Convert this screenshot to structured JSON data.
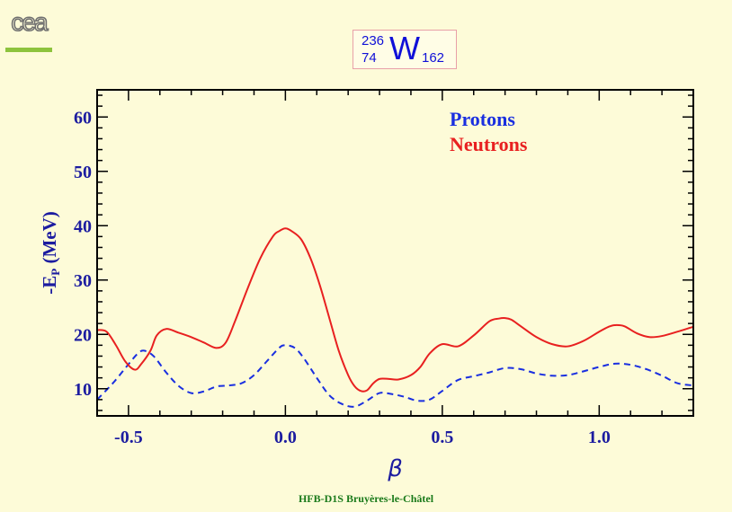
{
  "logo": {
    "text": "cea"
  },
  "nucleus": {
    "mass_number": "236",
    "atomic_number": "74",
    "symbol": "W",
    "neutron_number": "162"
  },
  "footer": {
    "text": "HFB-D1S Bruyères-le-Châtel"
  },
  "chart_data": {
    "type": "line",
    "title": "",
    "xlabel": "β",
    "ylabel_main": "-E",
    "ylabel_sub": "P",
    "ylabel_unit": " (MeV)",
    "xlim": [
      -0.6,
      1.3
    ],
    "ylim": [
      5,
      65
    ],
    "xticks": [
      -0.5,
      0.0,
      0.5,
      1.0
    ],
    "xtick_labels": [
      "-0.5",
      "0.0",
      "0.5",
      "1.0"
    ],
    "yticks": [
      10,
      20,
      30,
      40,
      50,
      60
    ],
    "ytick_labels": [
      "10",
      "20",
      "30",
      "40",
      "50",
      "60"
    ],
    "legend_placement": "top-right",
    "series": [
      {
        "name": "Protons",
        "color": "#1a2fe0",
        "dash": "dashed",
        "x": [
          -0.6,
          -0.55,
          -0.5,
          -0.47,
          -0.45,
          -0.42,
          -0.38,
          -0.34,
          -0.3,
          -0.26,
          -0.22,
          -0.18,
          -0.14,
          -0.1,
          -0.06,
          -0.02,
          0.0,
          0.03,
          0.06,
          0.1,
          0.14,
          0.18,
          0.22,
          0.26,
          0.3,
          0.34,
          0.38,
          0.42,
          0.46,
          0.5,
          0.55,
          0.6,
          0.65,
          0.7,
          0.75,
          0.8,
          0.85,
          0.9,
          0.95,
          1.0,
          1.05,
          1.1,
          1.15,
          1.2,
          1.25,
          1.3
        ],
        "y": [
          8.0,
          11.0,
          14.5,
          16.5,
          17.0,
          16.0,
          13.0,
          10.5,
          9.2,
          9.5,
          10.4,
          10.6,
          11.0,
          12.5,
          15.0,
          17.5,
          18.0,
          17.5,
          15.5,
          12.0,
          8.8,
          7.2,
          6.7,
          7.8,
          9.2,
          9.0,
          8.5,
          7.8,
          8.0,
          9.6,
          11.6,
          12.3,
          13.0,
          13.8,
          13.6,
          12.8,
          12.4,
          12.5,
          13.2,
          14.0,
          14.6,
          14.4,
          13.6,
          12.4,
          11.0,
          10.6
        ]
      },
      {
        "name": "Neutrons",
        "color": "#e82020",
        "dash": "solid",
        "x": [
          -0.6,
          -0.57,
          -0.54,
          -0.51,
          -0.48,
          -0.46,
          -0.43,
          -0.41,
          -0.38,
          -0.34,
          -0.3,
          -0.26,
          -0.22,
          -0.19,
          -0.16,
          -0.12,
          -0.08,
          -0.04,
          -0.02,
          0.0,
          0.02,
          0.05,
          0.08,
          0.11,
          0.14,
          0.17,
          0.2,
          0.22,
          0.24,
          0.26,
          0.28,
          0.3,
          0.33,
          0.36,
          0.4,
          0.43,
          0.46,
          0.5,
          0.55,
          0.6,
          0.65,
          0.68,
          0.7,
          0.72,
          0.75,
          0.8,
          0.85,
          0.9,
          0.95,
          1.0,
          1.03,
          1.05,
          1.08,
          1.12,
          1.16,
          1.2,
          1.25,
          1.3
        ],
        "y": [
          20.8,
          20.5,
          18.0,
          15.0,
          13.5,
          14.5,
          17.0,
          19.8,
          21.0,
          20.3,
          19.5,
          18.5,
          17.5,
          18.5,
          22.5,
          28.5,
          34.0,
          38.0,
          39.0,
          39.5,
          39.0,
          37.5,
          34.0,
          29.0,
          23.0,
          17.0,
          12.5,
          10.5,
          9.6,
          9.7,
          11.0,
          11.8,
          11.8,
          11.7,
          12.5,
          14.0,
          16.5,
          18.2,
          17.8,
          19.8,
          22.4,
          22.9,
          23.0,
          22.7,
          21.5,
          19.5,
          18.2,
          17.8,
          18.8,
          20.5,
          21.4,
          21.7,
          21.5,
          20.2,
          19.5,
          19.7,
          20.5,
          21.4
        ]
      }
    ]
  }
}
